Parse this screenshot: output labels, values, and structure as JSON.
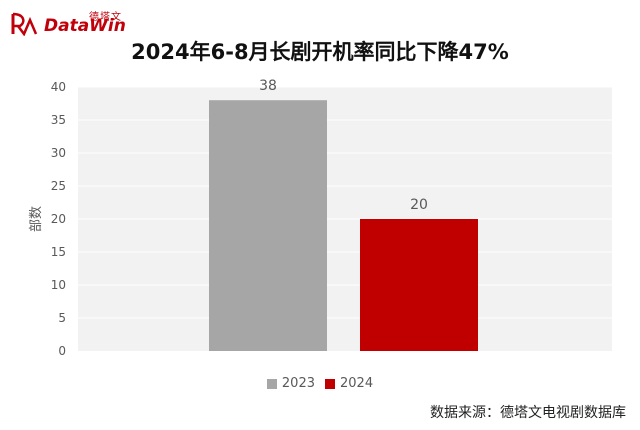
{
  "logo": {
    "cn": "德塔文",
    "en": "DataWin"
  },
  "chart_data": {
    "type": "bar",
    "title": "2024年6-8月长剧开机率同比下降47%",
    "ylabel": "部数",
    "xlabel": "",
    "ylim": [
      0,
      40
    ],
    "yticks": [
      0,
      5,
      10,
      15,
      20,
      25,
      30,
      35,
      40
    ],
    "grid": true,
    "legend_position": "bottom",
    "series": [
      {
        "name": "2023",
        "values": [
          38
        ],
        "color": "#a6a6a6"
      },
      {
        "name": "2024",
        "values": [
          20
        ],
        "color": "#c00000"
      }
    ],
    "data_labels": [
      "38",
      "20"
    ]
  },
  "source": "数据来源：德塔文电视剧数据库",
  "colors": {
    "brand": "#c0000a",
    "plot_bg": "#f2f2f2",
    "grid": "#ffffff"
  }
}
